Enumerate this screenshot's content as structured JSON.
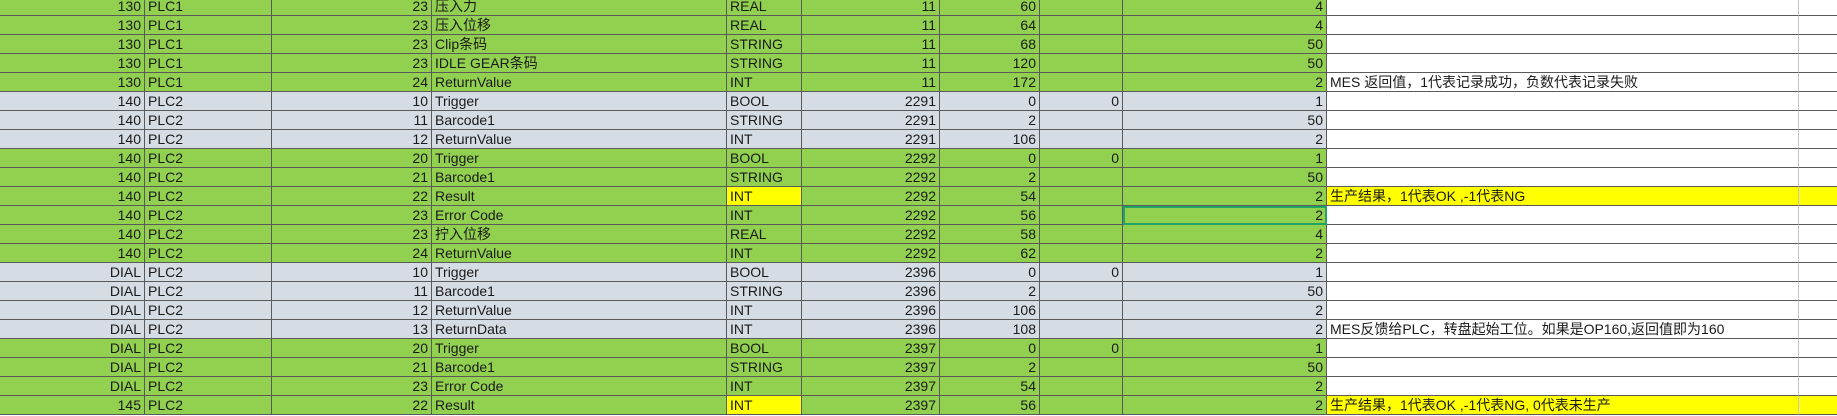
{
  "colors": {
    "green": "#92d050",
    "gray": "#d6dce4",
    "yellow": "#ffff00",
    "selection": "#21a366"
  },
  "rows": [
    {
      "station": "130",
      "plc": "PLC1",
      "idx": "23",
      "name": "压入力",
      "type": "REAL",
      "db": "11",
      "offset": "60",
      "bit": "",
      "len": "4",
      "note": "",
      "band": "green",
      "type_hl": false,
      "note_hl": false
    },
    {
      "station": "130",
      "plc": "PLC1",
      "idx": "23",
      "name": "压入位移",
      "type": "REAL",
      "db": "11",
      "offset": "64",
      "bit": "",
      "len": "4",
      "note": "",
      "band": "green",
      "type_hl": false,
      "note_hl": false
    },
    {
      "station": "130",
      "plc": "PLC1",
      "idx": "23",
      "name": "Clip条码",
      "type": "STRING",
      "db": "11",
      "offset": "68",
      "bit": "",
      "len": "50",
      "note": "",
      "band": "green",
      "type_hl": false,
      "note_hl": false
    },
    {
      "station": "130",
      "plc": "PLC1",
      "idx": "23",
      "name": "IDLE GEAR条码",
      "type": "STRING",
      "db": "11",
      "offset": "120",
      "bit": "",
      "len": "50",
      "note": "",
      "band": "green",
      "type_hl": false,
      "note_hl": false
    },
    {
      "station": "130",
      "plc": "PLC1",
      "idx": "24",
      "name": "ReturnValue",
      "type": "INT",
      "db": "11",
      "offset": "172",
      "bit": "",
      "len": "2",
      "note": "MES 返回值，1代表记录成功，负数代表记录失败",
      "band": "green",
      "type_hl": false,
      "note_hl": false
    },
    {
      "station": "140",
      "plc": "PLC2",
      "idx": "10",
      "name": "Trigger",
      "type": "BOOL",
      "db": "2291",
      "offset": "0",
      "bit": "0",
      "len": "1",
      "note": "",
      "band": "gray",
      "type_hl": false,
      "note_hl": false
    },
    {
      "station": "140",
      "plc": "PLC2",
      "idx": "11",
      "name": "Barcode1",
      "type": "STRING",
      "db": "2291",
      "offset": "2",
      "bit": "",
      "len": "50",
      "note": "",
      "band": "gray",
      "type_hl": false,
      "note_hl": false
    },
    {
      "station": "140",
      "plc": "PLC2",
      "idx": "12",
      "name": "ReturnValue",
      "type": "INT",
      "db": "2291",
      "offset": "106",
      "bit": "",
      "len": "2",
      "note": "",
      "band": "gray",
      "type_hl": false,
      "note_hl": false
    },
    {
      "station": "140",
      "plc": "PLC2",
      "idx": "20",
      "name": "Trigger",
      "type": "BOOL",
      "db": "2292",
      "offset": "0",
      "bit": "0",
      "len": "1",
      "note": "",
      "band": "green",
      "type_hl": false,
      "note_hl": false
    },
    {
      "station": "140",
      "plc": "PLC2",
      "idx": "21",
      "name": "Barcode1",
      "type": "STRING",
      "db": "2292",
      "offset": "2",
      "bit": "",
      "len": "50",
      "note": "",
      "band": "green",
      "type_hl": false,
      "note_hl": false
    },
    {
      "station": "140",
      "plc": "PLC2",
      "idx": "22",
      "name": "Result",
      "type": "INT",
      "db": "2292",
      "offset": "54",
      "bit": "",
      "len": "2",
      "note": "生产结果，1代表OK ,-1代表NG",
      "band": "green",
      "type_hl": true,
      "note_hl": true
    },
    {
      "station": "140",
      "plc": "PLC2",
      "idx": "23",
      "name": "Error Code",
      "type": "INT",
      "db": "2292",
      "offset": "56",
      "bit": "",
      "len": "2",
      "note": "",
      "band": "green",
      "type_hl": false,
      "note_hl": false,
      "selected": true
    },
    {
      "station": "140",
      "plc": "PLC2",
      "idx": "23",
      "name": "拧入位移",
      "type": "REAL",
      "db": "2292",
      "offset": "58",
      "bit": "",
      "len": "4",
      "note": "",
      "band": "green",
      "type_hl": false,
      "note_hl": false
    },
    {
      "station": "140",
      "plc": "PLC2",
      "idx": "24",
      "name": "ReturnValue",
      "type": "INT",
      "db": "2292",
      "offset": "62",
      "bit": "",
      "len": "2",
      "note": "",
      "band": "green",
      "type_hl": false,
      "note_hl": false
    },
    {
      "station": "DIAL",
      "plc": "PLC2",
      "idx": "10",
      "name": "Trigger",
      "type": "BOOL",
      "db": "2396",
      "offset": "0",
      "bit": "0",
      "len": "1",
      "note": "",
      "band": "gray",
      "type_hl": false,
      "note_hl": false
    },
    {
      "station": "DIAL",
      "plc": "PLC2",
      "idx": "11",
      "name": "Barcode1",
      "type": "STRING",
      "db": "2396",
      "offset": "2",
      "bit": "",
      "len": "50",
      "note": "",
      "band": "gray",
      "type_hl": false,
      "note_hl": false
    },
    {
      "station": "DIAL",
      "plc": "PLC2",
      "idx": "12",
      "name": "ReturnValue",
      "type": "INT",
      "db": "2396",
      "offset": "106",
      "bit": "",
      "len": "2",
      "note": "",
      "band": "gray",
      "type_hl": false,
      "note_hl": false
    },
    {
      "station": "DIAL",
      "plc": "PLC2",
      "idx": "13",
      "name": "ReturnData",
      "type": "INT",
      "db": "2396",
      "offset": "108",
      "bit": "",
      "len": "2",
      "note": "MES反馈给PLC，转盘起始工位。如果是OP160,返回值即为160",
      "band": "gray",
      "type_hl": false,
      "note_hl": false
    },
    {
      "station": "DIAL",
      "plc": "PLC2",
      "idx": "20",
      "name": "Trigger",
      "type": "BOOL",
      "db": "2397",
      "offset": "0",
      "bit": "0",
      "len": "1",
      "note": "",
      "band": "green",
      "type_hl": false,
      "note_hl": false
    },
    {
      "station": "DIAL",
      "plc": "PLC2",
      "idx": "21",
      "name": "Barcode1",
      "type": "STRING",
      "db": "2397",
      "offset": "2",
      "bit": "",
      "len": "50",
      "note": "",
      "band": "green",
      "type_hl": false,
      "note_hl": false
    },
    {
      "station": "DIAL",
      "plc": "PLC2",
      "idx": "23",
      "name": "Error Code",
      "type": "INT",
      "db": "2397",
      "offset": "54",
      "bit": "",
      "len": "2",
      "note": "",
      "band": "green",
      "type_hl": false,
      "note_hl": false
    },
    {
      "station": "145",
      "plc": "PLC2",
      "idx": "22",
      "name": "Result",
      "type": "INT",
      "db": "2397",
      "offset": "56",
      "bit": "",
      "len": "2",
      "note": "生产结果，1代表OK ,-1代表NG, 0代表未生产",
      "band": "green",
      "type_hl": true,
      "note_hl": true
    }
  ]
}
